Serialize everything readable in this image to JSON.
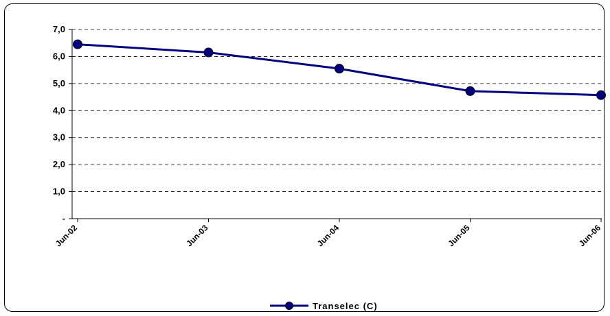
{
  "chart_data": {
    "type": "line",
    "categories": [
      "Jun-02",
      "Jun-03",
      "Jun-04",
      "Jun-05",
      "Jun-06"
    ],
    "series": [
      {
        "name": "Transelec (C)",
        "values": [
          6.45,
          6.15,
          5.55,
          4.72,
          4.57
        ]
      }
    ],
    "y_ticks": [
      {
        "value": 0,
        "label": "-"
      },
      {
        "value": 1,
        "label": "1,0"
      },
      {
        "value": 2,
        "label": "2,0"
      },
      {
        "value": 3,
        "label": "3,0"
      },
      {
        "value": 4,
        "label": "4,0"
      },
      {
        "value": 5,
        "label": "5,0"
      },
      {
        "value": 6,
        "label": "6,0"
      },
      {
        "value": 7,
        "label": "7,0"
      }
    ],
    "ylim": [
      0,
      7
    ],
    "grid": "dashed-horizontal",
    "legend_position": "bottom-center",
    "line_color": "#000080",
    "marker_color": "#000080",
    "title": "",
    "xlabel": "",
    "ylabel": ""
  }
}
